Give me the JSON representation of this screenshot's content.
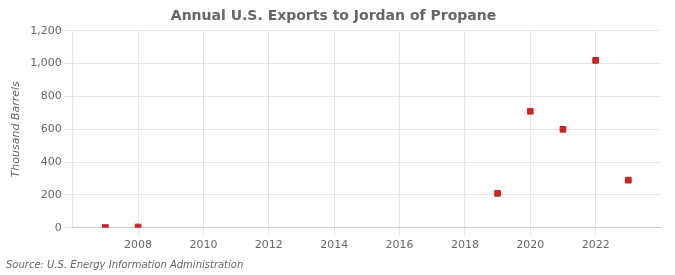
{
  "chart_data": {
    "type": "scatter",
    "title": "Annual U.S. Exports to Jordan of Propane",
    "ylabel": "Thousand Barrels",
    "annotations": [
      "Source: U.S. Energy Information Administration"
    ],
    "x": [
      2007,
      2008,
      2019,
      2020,
      2021,
      2022,
      2023
    ],
    "values": [
      2,
      5,
      210,
      710,
      600,
      1020,
      290
    ],
    "color": "#cc2222",
    "marker": "square",
    "xlim": [
      2006.0,
      2024.0
    ],
    "xticks": [
      2008,
      2010,
      2012,
      2014,
      2016,
      2018,
      2020,
      2022
    ],
    "ylim": [
      0,
      1200
    ],
    "yticks": [
      0,
      200,
      400,
      600,
      800,
      {
        "value": 1000,
        "label": "1,000"
      },
      {
        "value": 1200,
        "label": "1,200"
      }
    ],
    "grid": true
  }
}
